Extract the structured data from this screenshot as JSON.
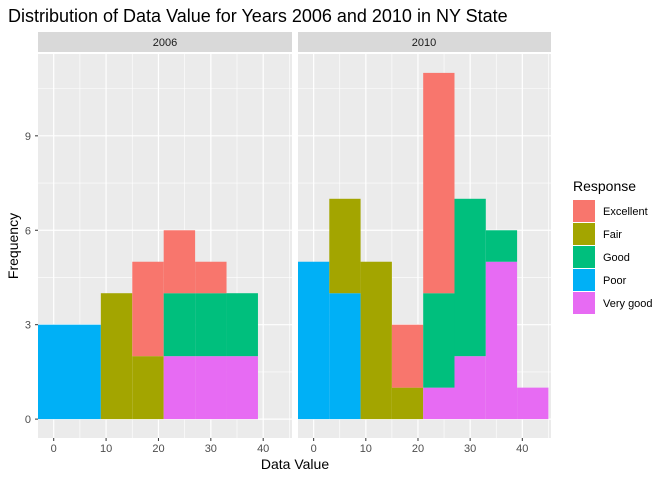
{
  "chart_data": {
    "type": "bar",
    "subtype": "stacked-histogram",
    "title": "Distribution of Data Value for Years 2006 and 2010 in NY State",
    "xlabel": "Data Value",
    "ylabel": "Frequency",
    "xlim": [
      -3,
      45.5
    ],
    "ylim": [
      -0.6,
      11.6
    ],
    "xticks": [
      0,
      10,
      20,
      30,
      40
    ],
    "yticks": [
      0,
      3,
      6,
      9
    ],
    "bin_width": 6,
    "grid": true,
    "legend": {
      "title": "Response",
      "position": "right",
      "entries": [
        {
          "label": "Excellent",
          "color": "#F8766D"
        },
        {
          "label": "Fair",
          "color": "#A3A500"
        },
        {
          "label": "Good",
          "color": "#00BF7D"
        },
        {
          "label": "Poor",
          "color": "#00B0F6"
        },
        {
          "label": "Very good",
          "color": "#E76BF3"
        }
      ]
    },
    "panels": [
      {
        "label": "2006",
        "bins": [
          {
            "x0": 3,
            "x1": 9,
            "counts": {
              "Poor": 3
            }
          },
          {
            "x0": 9,
            "x1": 15,
            "counts": {
              "Fair": 4
            }
          },
          {
            "x0": 15,
            "x1": 21,
            "counts": {
              "Fair": 2,
              "Excellent": 3
            }
          },
          {
            "x0": 21,
            "x1": 27,
            "counts": {
              "Very good": 2,
              "Good": 2,
              "Excellent": 2
            }
          },
          {
            "x0": 27,
            "x1": 33,
            "counts": {
              "Very good": 2,
              "Good": 2,
              "Excellent": 1
            }
          },
          {
            "x0": 33,
            "x1": 39,
            "counts": {
              "Very good": 2,
              "Good": 2
            }
          }
        ],
        "poor_left_edge": -3
      },
      {
        "label": "2010",
        "bins": [
          {
            "x0": -3,
            "x1": 3,
            "counts": {
              "Poor": 5
            }
          },
          {
            "x0": 3,
            "x1": 9,
            "counts": {
              "Poor": 4,
              "Fair": 3
            }
          },
          {
            "x0": 9,
            "x1": 15,
            "counts": {
              "Fair": 5
            }
          },
          {
            "x0": 15,
            "x1": 21,
            "counts": {
              "Fair": 1,
              "Excellent": 2
            }
          },
          {
            "x0": 21,
            "x1": 27,
            "counts": {
              "Very good": 1,
              "Good": 3,
              "Excellent": 7
            }
          },
          {
            "x0": 27,
            "x1": 33,
            "counts": {
              "Very good": 2,
              "Good": 5
            }
          },
          {
            "x0": 33,
            "x1": 39,
            "counts": {
              "Very good": 5,
              "Good": 1
            }
          },
          {
            "x0": 39,
            "x1": 45,
            "counts": {
              "Very good": 1
            }
          }
        ]
      }
    ]
  }
}
